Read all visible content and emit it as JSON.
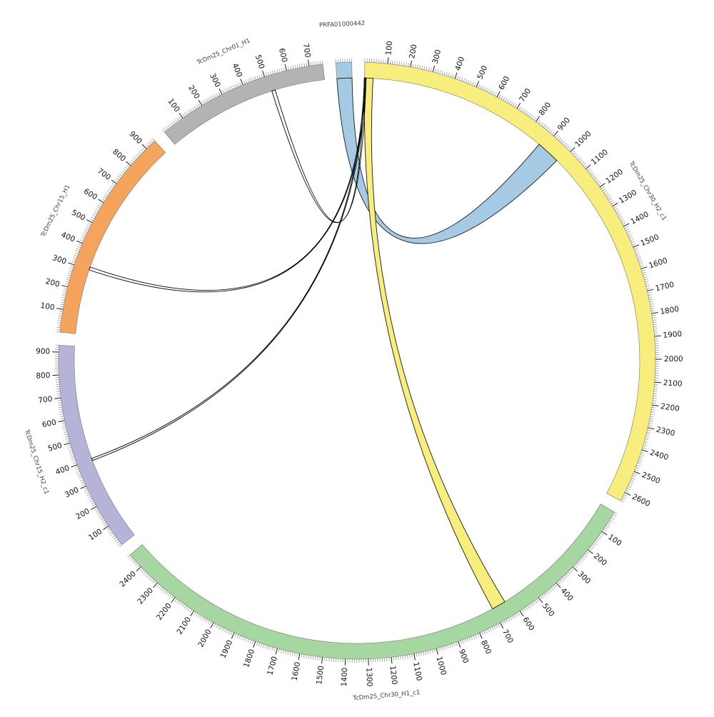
{
  "chart_data": {
    "type": "circos",
    "legend_position": "none",
    "grid": false,
    "minor_tick": 10,
    "major_tick": 100,
    "gap_deg": 2.5,
    "start_angle_deg": 1.5,
    "center": [
      500,
      505
    ],
    "inner_radius": 396,
    "outer_radius": 418,
    "label_radius": 471,
    "colors": {
      "minor_tick": "#8f8f8f",
      "major_tick": "#1a1a1a",
      "band_outline": "#777777",
      "link_outline": "#1a1a1a"
    },
    "segments": [
      {
        "name": "TcDm25_Chr30_H2_c1",
        "length": 2640,
        "color": "#F7EE7E"
      },
      {
        "name": "TcDm25_Chr30_H1_c1",
        "length": 2470,
        "color": "#A6D7A0"
      },
      {
        "name": "TcDm25_Chr15_H2_c1",
        "length": 930,
        "color": "#B6B3D8"
      },
      {
        "name": "TcDm25_Chr15_H1",
        "length": 950,
        "color": "#F5A45E"
      },
      {
        "name": "TcDm25_Chr01_H1",
        "length": 760,
        "color": "#B3B3B3"
      },
      {
        "name": "PRFA01000442",
        "length": 70,
        "color": "#A6CAE3"
      }
    ],
    "links": [
      {
        "source": "PRFA01000442",
        "source_start": 0,
        "source_end": 70,
        "target": "TcDm25_Chr30_H2_c1",
        "target_start": 875,
        "target_end": 985,
        "fill": "#A6CAE3",
        "stroke": "#1a1a1a"
      },
      {
        "source": "TcDm25_Chr30_H2_c1",
        "source_start": 2,
        "source_end": 40,
        "target": "TcDm25_Chr30_H1_c1",
        "target_start": 635,
        "target_end": 700,
        "fill": "#F7EE7E",
        "stroke": "#1a1a1a"
      },
      {
        "source": "TcDm25_Chr30_H2_c1",
        "source_start": 0,
        "source_end": 6,
        "target": "TcDm25_Chr15_H1",
        "target_start": 300,
        "target_end": 314,
        "fill": "none",
        "stroke": "#000000"
      },
      {
        "source": "TcDm25_Chr30_H2_c1",
        "source_start": 0,
        "source_end": 6,
        "target": "TcDm25_Chr15_H2_c1",
        "target_start": 394,
        "target_end": 404,
        "fill": "none",
        "stroke": "#000000"
      },
      {
        "source": "TcDm25_Chr30_H2_c1",
        "source_start": 0,
        "source_end": 8,
        "target": "TcDm25_Chr01_H1",
        "target_start": 512,
        "target_end": 528,
        "fill": "none",
        "stroke": "#000000"
      }
    ]
  }
}
